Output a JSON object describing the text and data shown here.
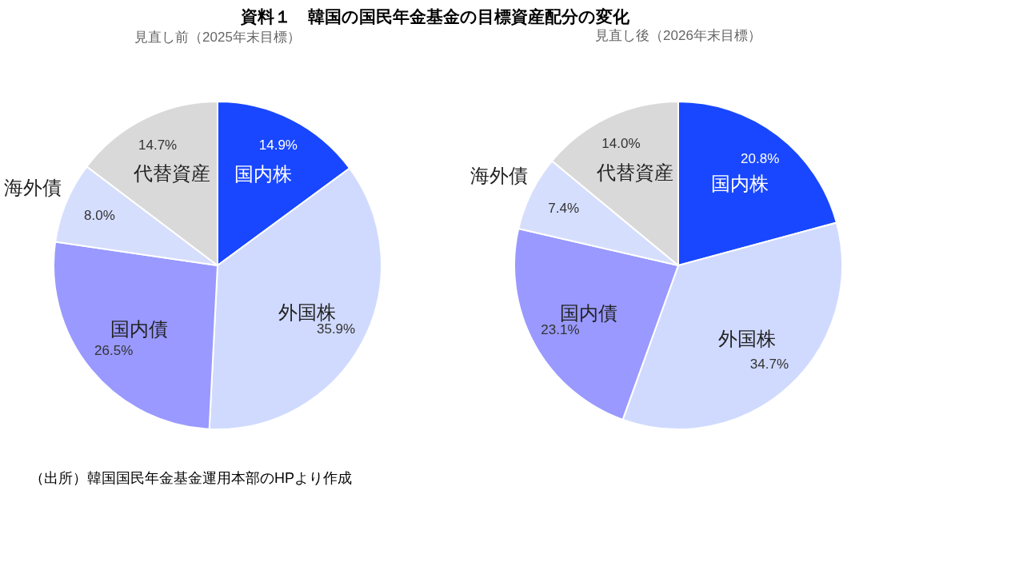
{
  "chart_data": [
    {
      "type": "pie",
      "title": "資料１　韓国の国民年金基金の目標資産配分の変化",
      "subtitle": "見直し前（2025年末目標）",
      "categories": [
        "国内株",
        "外国株",
        "国内債",
        "海外債",
        "代替資産"
      ],
      "values": [
        14.9,
        35.9,
        26.5,
        8.0,
        14.7
      ],
      "value_labels": [
        "14.9%",
        "35.9%",
        "26.5%",
        "8.0%",
        "14.7%"
      ],
      "colors": [
        "#1947ff",
        "#d0dafe",
        "#9999ff",
        "#d6defd",
        "#d9d9d9"
      ],
      "annotations": [
        "（出所）韓国国民年金基金運用本部のHPより作成"
      ]
    },
    {
      "type": "pie",
      "subtitle": "見直し後（2026年末目標）",
      "categories": [
        "国内株",
        "外国株",
        "国内債",
        "海外債",
        "代替資産"
      ],
      "values": [
        20.8,
        34.7,
        23.1,
        7.4,
        14.0
      ],
      "value_labels": [
        "20.8%",
        "34.7%",
        "23.1%",
        "7.4%",
        "14.0%"
      ],
      "colors": [
        "#1947ff",
        "#d0dafe",
        "#9999ff",
        "#d6defd",
        "#d9d9d9"
      ]
    }
  ]
}
